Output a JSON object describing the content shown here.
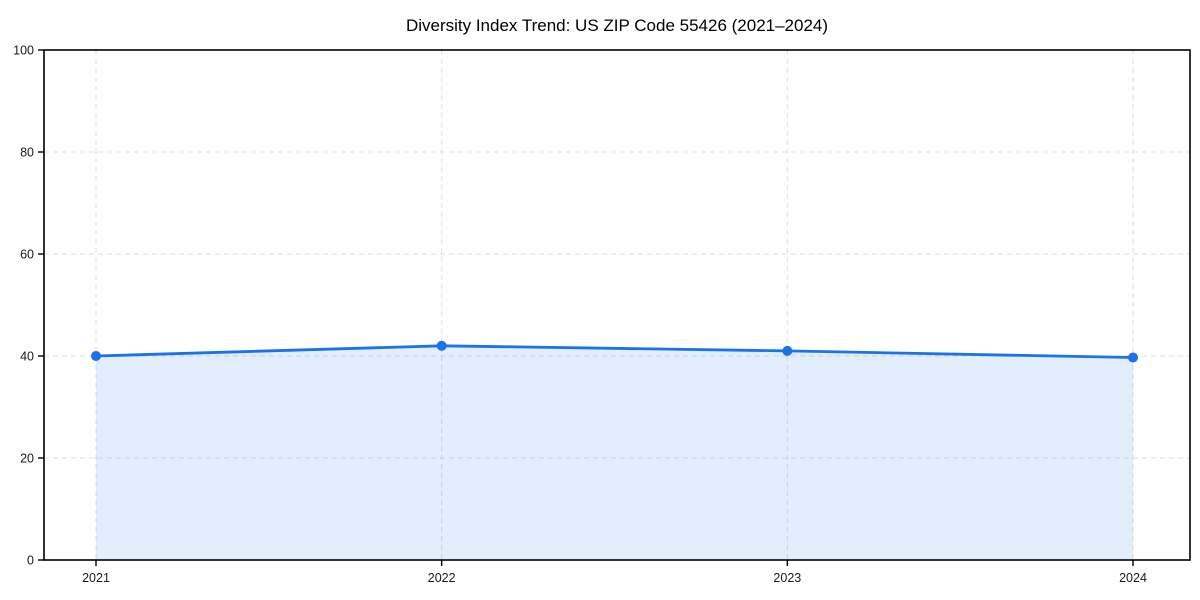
{
  "chart_data": {
    "type": "area",
    "title": "Diversity Index Trend: US ZIP Code 55426 (2021–2024)",
    "categories": [
      "2021",
      "2022",
      "2023",
      "2024"
    ],
    "values": [
      40,
      42,
      41,
      39.7
    ],
    "xlabel": "",
    "ylabel": "",
    "ylim": [
      0,
      100
    ],
    "yticks": [
      0,
      20,
      40,
      60,
      80,
      100
    ],
    "grid": true,
    "grid_style": "dashed",
    "legend_position": "none",
    "colors": {
      "line": "#1a73e8",
      "marker": "#1a73e8",
      "fill": "rgba(26,115,232,0.12)",
      "grid": "#dedede",
      "axis": "#000000",
      "tick_text": "#1a1a1a",
      "background": "#ffffff"
    }
  }
}
